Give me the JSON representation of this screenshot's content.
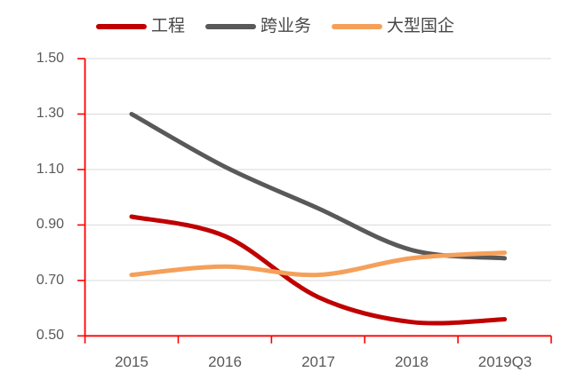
{
  "chart_data": {
    "type": "line",
    "categories": [
      "2015",
      "2016",
      "2017",
      "2018",
      "2019Q3"
    ],
    "series": [
      {
        "name": "工程",
        "color": "#C00000",
        "values": [
          0.93,
          0.86,
          0.64,
          0.55,
          0.56
        ]
      },
      {
        "name": "跨业务",
        "color": "#595959",
        "values": [
          1.3,
          1.11,
          0.96,
          0.81,
          0.78
        ]
      },
      {
        "name": "大型国企",
        "color": "#F5A05A",
        "values": [
          0.72,
          0.75,
          0.72,
          0.78,
          0.8
        ]
      }
    ],
    "title": "",
    "xlabel": "",
    "ylabel": "",
    "ylim": [
      0.5,
      1.5
    ],
    "ytick_step": 0.2,
    "yticks": [
      "1.50",
      "1.30",
      "1.10",
      "0.90",
      "0.70",
      "0.50"
    ],
    "legend_position": "top",
    "grid": "horizontal",
    "axis_color": "#FF0000",
    "gridline_color": "#D9D9D9",
    "tick_label_color": "#595959"
  }
}
